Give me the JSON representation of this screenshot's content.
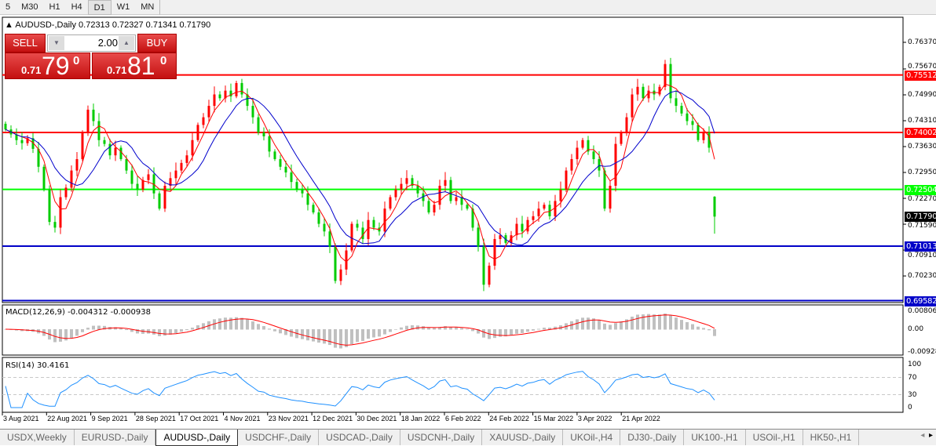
{
  "toolbar": {
    "timeframes": [
      "5",
      "M30",
      "H1",
      "H4",
      "D1",
      "W1",
      "MN"
    ],
    "active": "D1"
  },
  "header": {
    "symbol": "AUDUSD-,Daily",
    "ohlc": "0.72313 0.72327 0.71341 0.71790"
  },
  "trade_panel": {
    "sell_label": "SELL",
    "buy_label": "BUY",
    "lot": "2.00",
    "sell_prefix": "0.71",
    "sell_big": "79",
    "sell_sup": "0",
    "buy_prefix": "0.71",
    "buy_big": "81",
    "buy_sup": "0",
    "color": "#d42020"
  },
  "chart_data": {
    "type": "candlestick",
    "title": "AUDUSD-,Daily",
    "ylim": [
      0.6955,
      0.7685
    ],
    "price_ticks": [
      "0.76370",
      "0.75670",
      "0.74990",
      "0.74310",
      "0.73630",
      "0.72950",
      "0.72270",
      "0.71590",
      "0.70910",
      "0.70230"
    ],
    "date_ticks": [
      "3 Aug 2021",
      "22 Aug 2021",
      "9 Sep 2021",
      "28 Sep 2021",
      "17 Oct 2021",
      "4 Nov 2021",
      "23 Nov 2021",
      "12 Dec 2021",
      "30 Dec 2021",
      "18 Jan 2022",
      "6 Feb 2022",
      "24 Feb 2022",
      "15 Mar 2022",
      "3 Apr 2022",
      "21 Apr 2022"
    ],
    "closes": [
      0.7408,
      0.7395,
      0.738,
      0.7372,
      0.7385,
      0.7357,
      0.731,
      0.725,
      0.7165,
      0.715,
      0.723,
      0.7255,
      0.73,
      0.733,
      0.74,
      0.746,
      0.743,
      0.738,
      0.737,
      0.734,
      0.736,
      0.733,
      0.73,
      0.7265,
      0.725,
      0.7275,
      0.729,
      0.724,
      0.72,
      0.726,
      0.728,
      0.73,
      0.732,
      0.734,
      0.738,
      0.742,
      0.744,
      0.747,
      0.75,
      0.749,
      0.751,
      0.7495,
      0.753,
      0.75,
      0.747,
      0.744,
      0.74,
      0.739,
      0.735,
      0.733,
      0.731,
      0.7295,
      0.727,
      0.725,
      0.724,
      0.721,
      0.719,
      0.716,
      0.714,
      0.71,
      0.701,
      0.704,
      0.709,
      0.716,
      0.715,
      0.712,
      0.717,
      0.715,
      0.714,
      0.72,
      0.723,
      0.725,
      0.7265,
      0.728,
      0.726,
      0.724,
      0.722,
      0.719,
      0.721,
      0.726,
      0.7275,
      0.722,
      0.723,
      0.721,
      0.72,
      0.715,
      0.71,
      0.7,
      0.705,
      0.712,
      0.713,
      0.711,
      0.713,
      0.716,
      0.714,
      0.717,
      0.718,
      0.72,
      0.721,
      0.718,
      0.722,
      0.725,
      0.73,
      0.733,
      0.736,
      0.738,
      0.735,
      0.733,
      0.73,
      0.72,
      0.726,
      0.737,
      0.74,
      0.744,
      0.75,
      0.752,
      0.749,
      0.751,
      0.75,
      0.752,
      0.758,
      0.749,
      0.747,
      0.745,
      0.743,
      0.742,
      0.738,
      0.74,
      0.736,
      0.7179
    ],
    "last_bar": {
      "open": 0.72313,
      "high": 0.72327,
      "low": 0.71341,
      "close": 0.7179
    },
    "levels": [
      {
        "price": "0.75512",
        "color": "#ff0000"
      },
      {
        "price": "0.74002",
        "color": "#ff0000"
      },
      {
        "price": "0.72504",
        "color": "#00ff00"
      },
      {
        "price": "0.71013",
        "color": "#0000c8"
      },
      {
        "price": "0.69582",
        "color": "#0000c8"
      }
    ],
    "current_price": "0.71790",
    "bull_color": "#ff0000",
    "bear_color": "#00cc00",
    "ma_colors": {
      "fast": "#ff0000",
      "slow": "#0000cc"
    },
    "macd": {
      "label": "MACD(12,26,9) -0.004312 -0.000938",
      "ticks": [
        "0.008061",
        "0.00",
        "-0.009286"
      ],
      "ylim": [
        -0.009286,
        0.008061
      ]
    },
    "rsi": {
      "label": "RSI(14) 30.4161",
      "ticks": [
        "100",
        "70",
        "30",
        "0"
      ],
      "levels": [
        70,
        30
      ]
    }
  },
  "tabs": [
    {
      "label": "USDX,Weekly"
    },
    {
      "label": "EURUSD-,Daily"
    },
    {
      "label": "AUDUSD-,Daily",
      "active": true
    },
    {
      "label": "USDCHF-,Daily"
    },
    {
      "label": "USDCAD-,Daily"
    },
    {
      "label": "USDCNH-,Daily"
    },
    {
      "label": "XAUUSD-,Daily"
    },
    {
      "label": "UKOil-,H4"
    },
    {
      "label": "DJ30-,Daily"
    },
    {
      "label": "UK100-,H1"
    },
    {
      "label": "USOil-,H1"
    },
    {
      "label": "HK50-,H1"
    }
  ],
  "tab_nav": {
    "left": "◂",
    "right": "▸"
  }
}
